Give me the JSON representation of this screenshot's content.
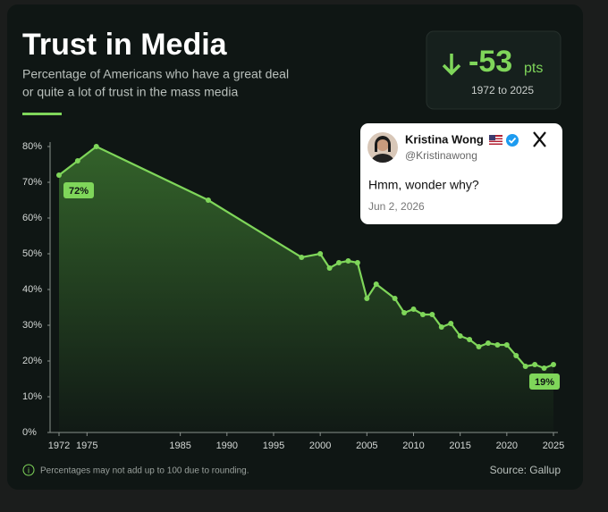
{
  "chart_data": {
    "type": "line",
    "title": "Trust in Media",
    "subtitle": [
      "Percentage of Americans who have a great deal",
      "or quite a lot of trust in the mass media"
    ],
    "x": [
      1972,
      1974,
      1976,
      1988,
      1998,
      2000,
      2001,
      2002,
      2003,
      2004,
      2005,
      2006,
      2008,
      2009,
      2010,
      2011,
      2012,
      2013,
      2014,
      2015,
      2016,
      2017,
      2018,
      2019,
      2020,
      2021,
      2022,
      2023,
      2024,
      2025
    ],
    "series": [
      {
        "color": "#7fd65a",
        "values": [
          72,
          76,
          80,
          65,
          49,
          50,
          46,
          47.5,
          48,
          47.5,
          37.5,
          41.5,
          37.5,
          33.5,
          34.5,
          33,
          33,
          29.5,
          30.5,
          27,
          26,
          24,
          25,
          24.5,
          24.5,
          21.5,
          18.5,
          19,
          18,
          19
        ],
        "value_labels": [
          "72%",
          null,
          null,
          null,
          null,
          null,
          null,
          null,
          null,
          null,
          null,
          null,
          null,
          null,
          null,
          null,
          null,
          null,
          null,
          null,
          null,
          null,
          null,
          null,
          null,
          null,
          null,
          null,
          null,
          "19%"
        ]
      }
    ],
    "xlim": [
      1972,
      2025
    ],
    "xticks": [
      1972,
      1975,
      1985,
      1990,
      1995,
      2000,
      2005,
      2010,
      2015,
      2020,
      2025
    ],
    "ylim": [
      0,
      80
    ],
    "yticks": [
      {
        "value": 0,
        "label": "0%"
      },
      {
        "value": 10,
        "label": "10%"
      },
      {
        "value": 20,
        "label": "20%"
      },
      {
        "value": 30,
        "label": "30%"
      },
      {
        "value": 40,
        "label": "40%"
      },
      {
        "value": 50,
        "label": "50%"
      },
      {
        "value": 60,
        "label": "60%"
      },
      {
        "value": 70,
        "label": "70%"
      },
      {
        "value": 80,
        "label": "80%"
      }
    ],
    "grid": false,
    "footnote": "Percentages may not add up to 100 due to rounding.",
    "source": "Source: Gallup"
  },
  "stat": {
    "change": "-53",
    "unit": "pts",
    "period": "1972 to 2025"
  },
  "tweet": {
    "name": "Kristina Wong",
    "handle": "@Kristinawong",
    "text": "Hmm, wonder why?",
    "date": "Jun 2, 2026"
  }
}
